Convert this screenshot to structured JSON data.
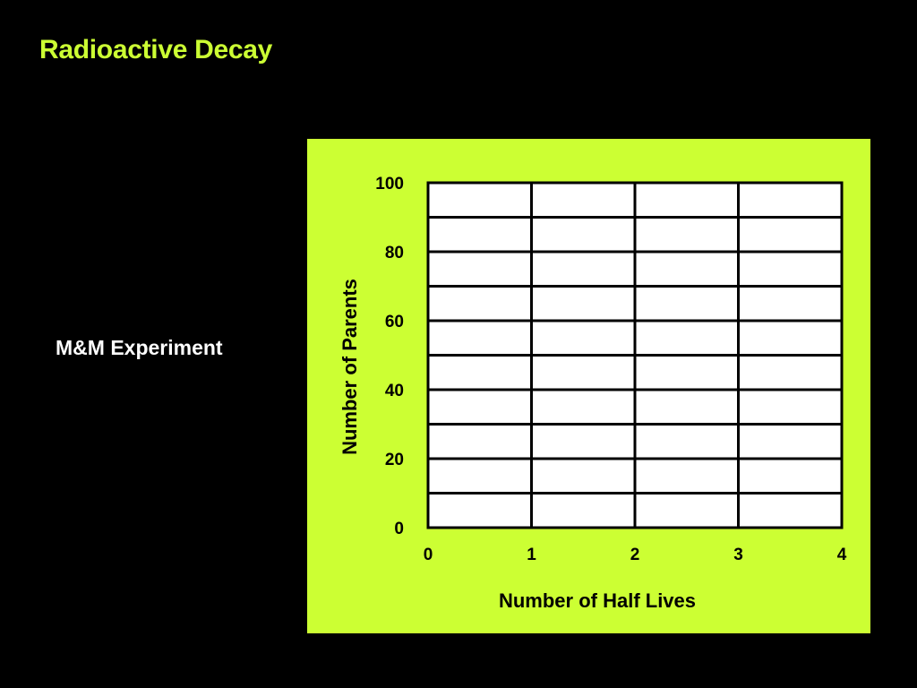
{
  "slide": {
    "title": "Radioactive Decay",
    "side_label": "M&M Experiment"
  },
  "colors": {
    "background": "#000000",
    "accent": "#ccff33",
    "plot_area": "#ffffff",
    "gridline": "#000000"
  },
  "chart_data": {
    "type": "line",
    "title": "",
    "xlabel": "Number of Half Lives",
    "ylabel": "Number of Parents",
    "xlim": [
      0,
      4
    ],
    "ylim": [
      0,
      100
    ],
    "x_ticks": [
      0,
      1,
      2,
      3,
      4
    ],
    "y_ticks": [
      0,
      20,
      40,
      60,
      80,
      100
    ],
    "x_tick_labels": [
      "0",
      "1",
      "2",
      "3",
      "4"
    ],
    "y_tick_labels": [
      "0",
      "20",
      "40",
      "60",
      "80",
      "100"
    ],
    "y_minor_step": 10,
    "grid": true,
    "series": []
  }
}
